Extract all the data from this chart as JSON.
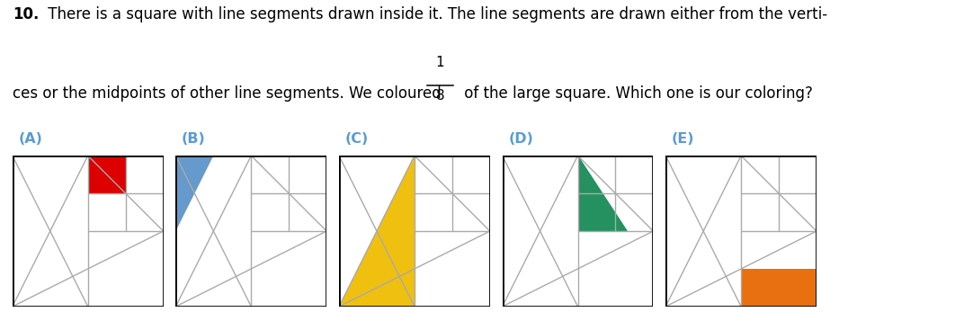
{
  "text_bold": "10.",
  "text_line1_rest": " There is a square with line segments drawn inside it. The line segments are drawn either from the verti-",
  "text_line2_pre": "ces or the midpoints of other line segments. We coloured ",
  "text_line2_post": " of the large square. Which one is our coloring?",
  "labels": [
    "(A)",
    "(B)",
    "(C)",
    "(D)",
    "(E)"
  ],
  "label_color": "#5b9bd5",
  "colors": {
    "A": "#dd0000",
    "B": "#6699cc",
    "C": "#f0c010",
    "D": "#259060",
    "E": "#e87010"
  },
  "bg": "#ffffff",
  "line_color": "#aaaaaa",
  "box_color": "#000000",
  "fig_width": 10.62,
  "fig_height": 3.57
}
